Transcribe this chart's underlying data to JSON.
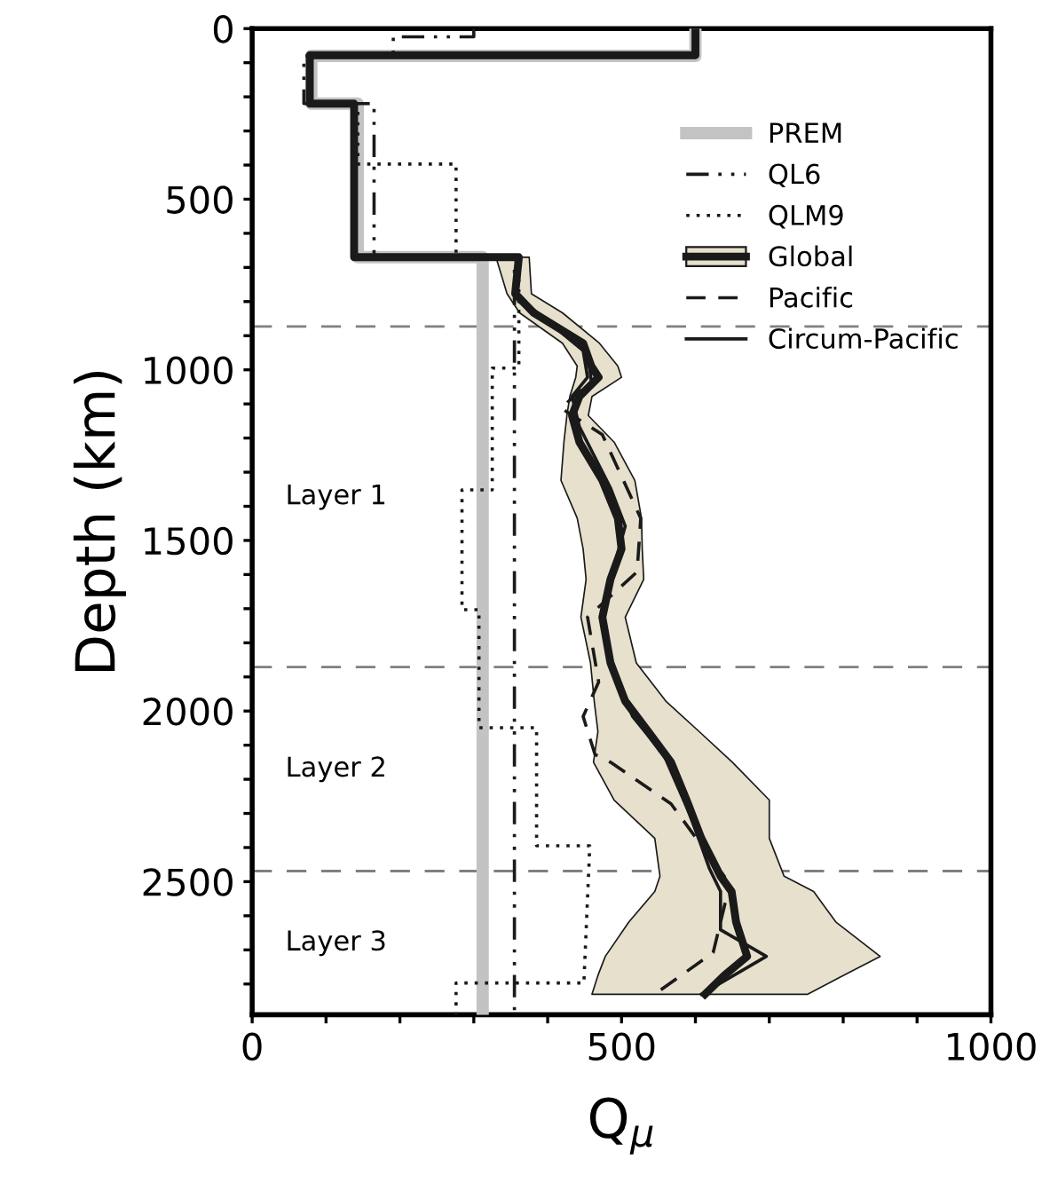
{
  "chart_data": {
    "type": "line",
    "orientation": "horizontal",
    "xlabel": "Q$_{μ}$",
    "ylabel": "Depth (km)",
    "xlim": [
      0,
      1000
    ],
    "ylim": [
      2890,
      0
    ],
    "xticks": [
      0,
      {
        "value": 100,
        "label": null
      },
      {
        "value": 200,
        "label": null
      },
      {
        "value": 300,
        "label": null
      },
      {
        "value": 400,
        "label": null
      },
      500,
      {
        "value": 600,
        "label": null
      },
      {
        "value": 700,
        "label": null
      },
      {
        "value": 800,
        "label": null
      },
      {
        "value": 900,
        "label": null
      },
      1000
    ],
    "yticks": [
      0,
      {
        "value": 100,
        "label": null
      },
      {
        "value": 200,
        "label": null
      },
      {
        "value": 300,
        "label": null
      },
      {
        "value": 400,
        "label": null
      },
      500,
      {
        "value": 600,
        "label": null
      },
      {
        "value": 700,
        "label": null
      },
      {
        "value": 800,
        "label": null
      },
      {
        "value": 900,
        "label": null
      },
      1000,
      {
        "value": 1100,
        "label": null
      },
      {
        "value": 1200,
        "label": null
      },
      {
        "value": 1300,
        "label": null
      },
      {
        "value": 1400,
        "label": null
      },
      1500,
      {
        "value": 1600,
        "label": null
      },
      {
        "value": 1700,
        "label": null
      },
      {
        "value": 1800,
        "label": null
      },
      {
        "value": 1900,
        "label": null
      },
      2000,
      {
        "value": 2100,
        "label": null
      },
      {
        "value": 2200,
        "label": null
      },
      {
        "value": 2300,
        "label": null
      },
      {
        "value": 2400,
        "label": null
      },
      2500,
      {
        "value": 2600,
        "label": null
      },
      {
        "value": 2700,
        "label": null
      },
      {
        "value": 2800,
        "label": null
      }
    ],
    "grid": false,
    "legend": "top right",
    "annotations": [
      "Layer 1",
      "Layer 2",
      "Layer 3"
    ],
    "series": [
      {
        "name": "PREM",
        "color": "#c3c3c3",
        "line_style": "solid",
        "values": [
          600,
          600,
          80,
          80,
          143,
          143,
          312,
          312
        ],
        "x": [
          0,
          80,
          80,
          220,
          220,
          670,
          670,
          2890
        ]
      },
      {
        "name": "QL6",
        "color": "#1a1a1a",
        "line_style": "dashdot",
        "values": [
          300,
          300,
          191,
          191,
          70,
          70,
          165,
          165,
          355,
          355
        ],
        "x": [
          0,
          24,
          24,
          80,
          80,
          220,
          220,
          670,
          670,
          2890
        ]
      },
      {
        "name": "QLM9",
        "color": "#1a1a1a",
        "line_style": "dotted",
        "values": [
          80,
          80,
          143,
          143,
          276,
          276,
          361,
          361,
          325,
          325,
          284,
          284,
          307,
          307,
          385,
          385,
          457,
          449,
          276,
          276
        ],
        "x": [
          80,
          220,
          220,
          397,
          397,
          670,
          670,
          995,
          995,
          1352,
          1352,
          1703,
          1703,
          2049,
          2049,
          2395,
          2395,
          2797,
          2797,
          2890
        ]
      },
      {
        "name": "Global",
        "color": "#1a1a1a",
        "line_style": "solid",
        "values": [
          600,
          600,
          78,
          78,
          138,
          138,
          361,
          356,
          381,
          448,
          459,
          469,
          443,
          433,
          443,
          474,
          495,
          500,
          485,
          474,
          485,
          505,
          536,
          567,
          588,
          608,
          634,
          649,
          655,
          670,
          639,
          613
        ],
        "x": [
          0,
          78,
          78,
          220,
          220,
          670,
          670,
          777,
          833,
          922,
          989,
          1022,
          1078,
          1134,
          1212,
          1324,
          1435,
          1525,
          1614,
          1725,
          1859,
          1971,
          2060,
          2150,
          2261,
          2373,
          2484,
          2529,
          2618,
          2719,
          2775,
          2830
        ],
        "lower": [
          null,
          null,
          null,
          null,
          null,
          null,
          330,
          345,
          362,
          420,
          440,
          438,
          430,
          426,
          422,
          418,
          440,
          448,
          452,
          445,
          458,
          463,
          468,
          462,
          490,
          545,
          552,
          545,
          510,
          478,
          468,
          460
        ],
        "upper": [
          null,
          null,
          null,
          null,
          null,
          null,
          375,
          378,
          420,
          470,
          495,
          500,
          460,
          455,
          490,
          518,
          527,
          528,
          530,
          505,
          520,
          560,
          605,
          650,
          700,
          700,
          720,
          760,
          790,
          850,
          800,
          752
        ]
      },
      {
        "name": "Pacific",
        "color": "#1a1a1a",
        "line_style": "dashed",
        "values": [
          361,
          454,
          459,
          418,
          474,
          526,
          521,
          454,
          469,
          448,
          464,
          485,
          567,
          639,
          644,
          624,
          552
        ],
        "x": [
          799,
          944,
          1033,
          1112,
          1190,
          1435,
          1592,
          1725,
          1915,
          2016,
          2127,
          2150,
          2272,
          2484,
          2529,
          2708,
          2819
        ]
      },
      {
        "name": "Circum-Pacific",
        "color": "#1a1a1a",
        "line_style": "solid",
        "values": [
          361,
          448,
          454,
          433,
          443,
          485,
          505,
          485,
          474,
          485,
          515,
          557,
          593,
          608,
          619,
          634,
          634,
          696,
          608
        ],
        "x": [
          788,
          944,
          1022,
          1078,
          1167,
          1346,
          1458,
          1614,
          1725,
          1859,
          2016,
          2127,
          2306,
          2395,
          2462,
          2529,
          2641,
          2719,
          2830
        ]
      }
    ],
    "ref_lines": [
      {
        "axis": "y",
        "value": 873,
        "color": "#808080",
        "line_style": "dashed"
      },
      {
        "axis": "y",
        "value": 1871,
        "color": "#808080",
        "line_style": "dashed"
      },
      {
        "axis": "y",
        "value": 2469,
        "color": "#808080",
        "line_style": "dashed"
      }
    ]
  }
}
